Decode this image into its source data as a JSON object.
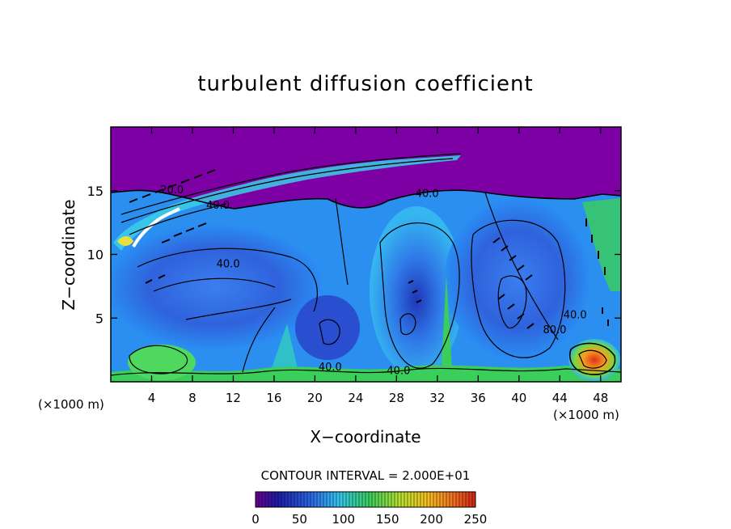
{
  "chart_data": {
    "type": "heatmap",
    "title": "turbulent diffusion coefficient",
    "xlabel": "X−coordinate",
    "ylabel": "Z−coordinate",
    "x_unit_left": "(×1000 m)",
    "x_unit_right": "(×1000 m)",
    "xlim": [
      0,
      50
    ],
    "ylim": [
      0,
      20
    ],
    "xticks": [
      4,
      8,
      12,
      16,
      20,
      24,
      28,
      32,
      36,
      40,
      44,
      48
    ],
    "yticks": [
      5,
      10,
      15
    ],
    "contour_interval_text": "CONTOUR INTERVAL = 2.000E+01",
    "contour_labels": [
      {
        "text": "40.0",
        "x": 10.5,
        "y": 13.6
      },
      {
        "text": "40.0",
        "x": 11.5,
        "y": 9.0
      },
      {
        "text": "40.0",
        "x": 31.0,
        "y": 14.5
      },
      {
        "text": "40.0",
        "x": 21.5,
        "y": 0.9
      },
      {
        "text": "40.0",
        "x": 28.2,
        "y": 0.6
      },
      {
        "text": "20.0",
        "x": 6.0,
        "y": 14.8
      },
      {
        "text": "80.0",
        "x": 43.5,
        "y": 3.8
      },
      {
        "text": "40.0",
        "x": 45.5,
        "y": 5.0
      }
    ],
    "colorbar": {
      "min": 0,
      "max": 250,
      "ticks": [
        0,
        50,
        100,
        150,
        200,
        250
      ]
    },
    "colors": {
      "background_purple": "#7c00a3",
      "low": "#1c1ca6",
      "mid_low": "#3a7ef0",
      "mid": "#33d0ee",
      "green": "#3acf5a",
      "high": "#e2301c"
    }
  }
}
